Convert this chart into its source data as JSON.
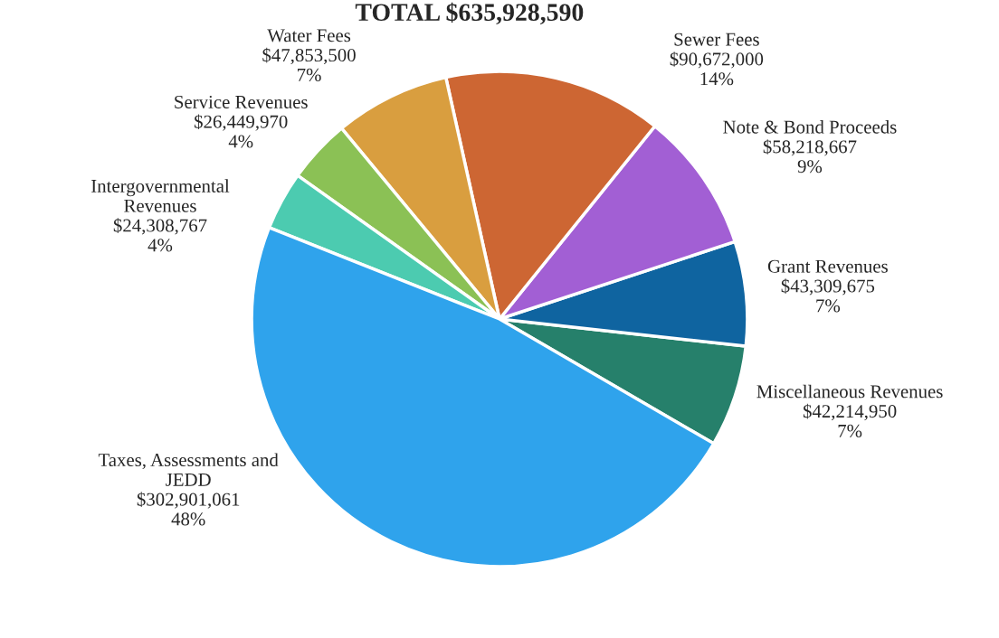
{
  "chart_data": {
    "type": "pie",
    "title": "TOTAL $635,928,590",
    "categories": [
      "Miscellaneous Revenues",
      "Grant Revenues",
      "Note & Bond Proceeds",
      "Sewer Fees",
      "Water Fees",
      "Service Revenues",
      "Intergovernmental\nRevenues",
      "Taxes, Assessments and\nJEDD"
    ],
    "values": [
      42214950,
      43309675,
      58218667,
      90672000,
      47853500,
      26449970,
      24308767,
      302901061
    ],
    "value_labels": [
      "$42,214,950\n7%",
      "$43,309,675\n7%",
      "$58,218,667\n9%",
      "$90,672,000\n14%",
      "$47,853,500\n7%",
      "$26,449,970\n4%",
      "$24,308,767\n4%",
      "$302,901,061\n48%"
    ],
    "colors": [
      "#26806b",
      "#0f64a0",
      "#a25fd4",
      "#cd6633",
      "#d99e3f",
      "#8bc155",
      "#4ccbb0",
      "#2fa3ec"
    ],
    "legend": false
  }
}
